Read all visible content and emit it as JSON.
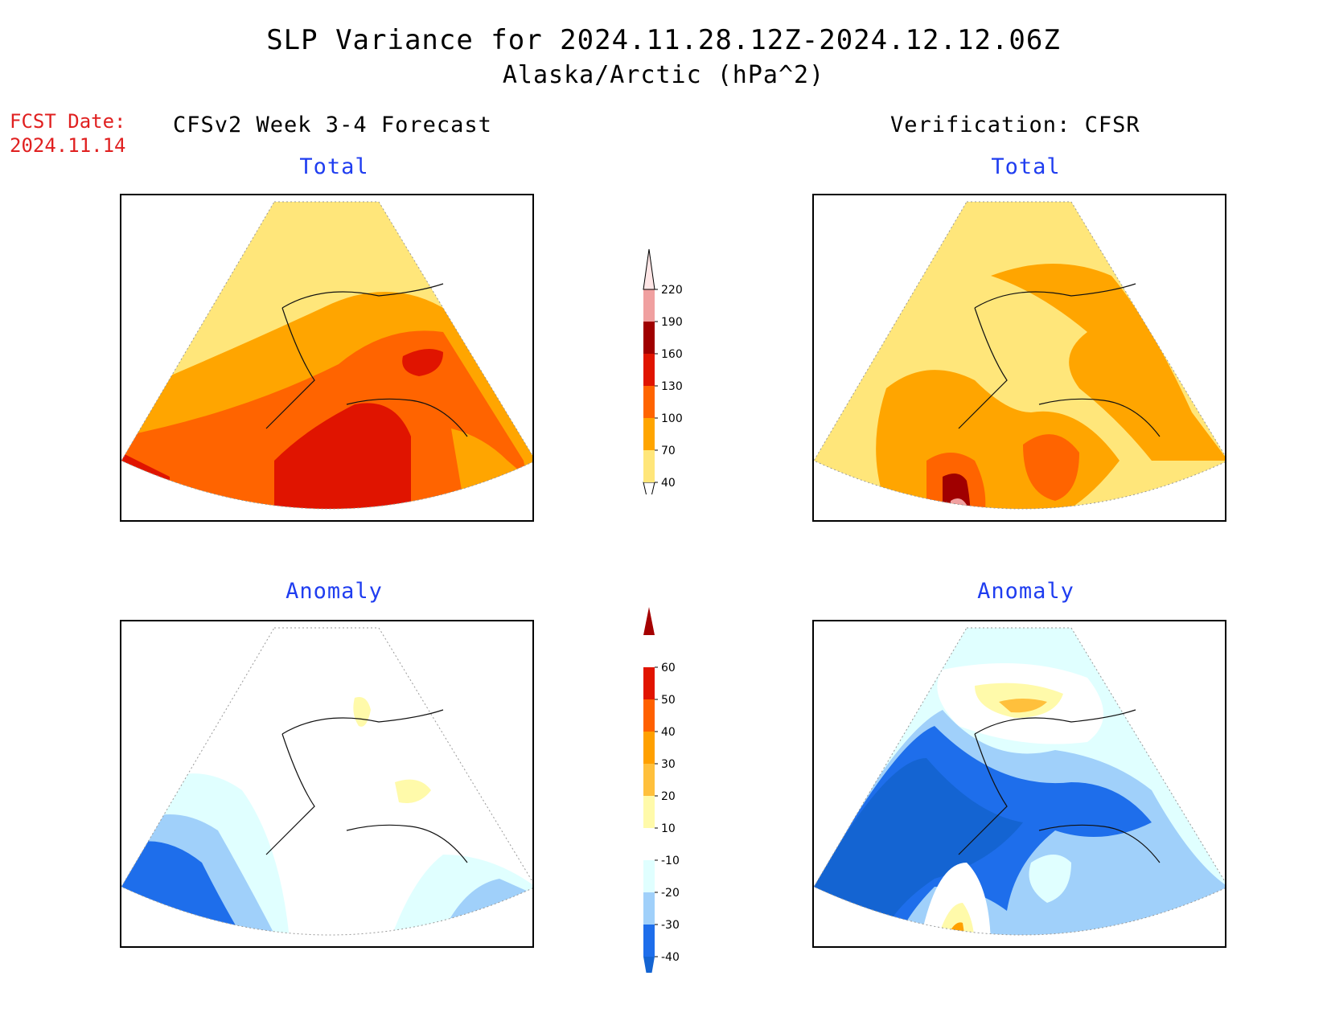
{
  "title": "SLP Variance for 2024.11.28.12Z-2024.12.12.06Z",
  "subtitle": "Alaska/Arctic (hPa^2)",
  "fcst_label": "FCST Date:",
  "fcst_date": "2024.11.14",
  "left_header": "CFSv2 Week 3-4 Forecast",
  "right_header": "Verification: CFSR",
  "panels": {
    "fcst_total": "Total",
    "obs_total": "Total",
    "fcst_anom": "Anomaly",
    "obs_anom": "Anomaly"
  },
  "total_colorbar": {
    "levels": [
      "40",
      "70",
      "100",
      "130",
      "160",
      "190",
      "220"
    ],
    "colors": [
      "#ffe67a",
      "#ffa500",
      "#ff6400",
      "#e01400",
      "#a00000",
      "#f0a0a0",
      "#ffe6e6"
    ]
  },
  "anomaly_colorbar": {
    "levels": [
      "-40",
      "-30",
      "-20",
      "-10",
      "10",
      "20",
      "30",
      "40",
      "50",
      "60"
    ],
    "colors": [
      "#1464d2",
      "#1e6eeb",
      "#a0d0fa",
      "#e0ffff",
      "#ffffff",
      "#fffaaa",
      "#ffc03c",
      "#ffa000",
      "#ff6000",
      "#e11400",
      "#a50000"
    ]
  }
}
